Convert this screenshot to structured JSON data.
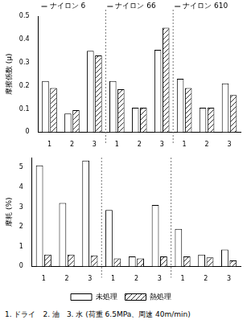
{
  "chart_data": [
    {
      "type": "bar",
      "y_label": "摩擦係数 (μ)",
      "categories": [
        "1",
        "2",
        "3",
        "1",
        "2",
        "3",
        "1",
        "2",
        "3"
      ],
      "annotations": [
        "ナイロン 6",
        "ナイロン 66",
        "ナイロン 610"
      ],
      "series": [
        {
          "name": "未処理",
          "color": "#ffffff",
          "values": [
            0.22,
            0.08,
            0.35,
            0.22,
            0.105,
            0.355,
            0.23,
            0.105,
            0.21
          ]
        },
        {
          "name": "熱処理",
          "color": "#333333",
          "line_style": "hatched",
          "values": [
            0.19,
            0.095,
            0.33,
            0.185,
            0.105,
            0.45,
            0.19,
            0.105,
            0.16
          ]
        }
      ],
      "ylim": [
        0,
        0.5
      ],
      "yticks": [
        0,
        0.1,
        0.2,
        0.3,
        0.4,
        0.5
      ],
      "grid": false
    },
    {
      "type": "bar",
      "y_label": "摩耗 (%)",
      "categories": [
        "1",
        "2",
        "3",
        "1",
        "2",
        "3",
        "1",
        "2",
        "3"
      ],
      "annotations": [
        "1. ドライ　2. 油　3. 水 (荷重 6.5MPa、周速 40m/min)"
      ],
      "series": [
        {
          "name": "未処理",
          "color": "#ffffff",
          "values": [
            5.1,
            3.2,
            5.35,
            2.85,
            0.5,
            3.1,
            1.9,
            0.6,
            0.85
          ]
        },
        {
          "name": "熱処理",
          "color": "#333333",
          "line_style": "hatched",
          "values": [
            0.6,
            0.6,
            0.55,
            0.4,
            0.4,
            0.5,
            0.5,
            0.45,
            0.3
          ]
        }
      ],
      "ylim": [
        0,
        5.5
      ],
      "yticks": [
        0,
        1,
        2,
        3,
        4,
        5
      ],
      "grid": false,
      "legend": "bottom"
    }
  ]
}
